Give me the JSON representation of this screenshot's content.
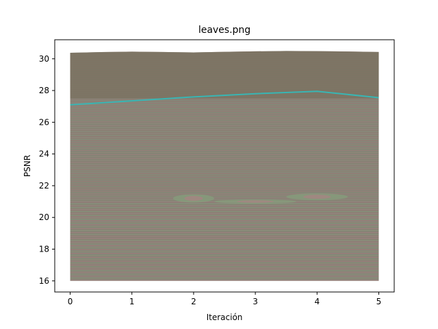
{
  "chart_data": {
    "type": "line",
    "title": "leaves.png",
    "xlabel": "Iteración",
    "ylabel": "PSNR",
    "xlim": [
      -0.25,
      5.25
    ],
    "ylim": [
      15.3,
      31.2
    ],
    "x_ticks": [
      0,
      1,
      2,
      3,
      4,
      5
    ],
    "y_ticks": [
      16,
      18,
      20,
      22,
      24,
      26,
      28,
      30
    ],
    "grid": false,
    "series": [
      {
        "x": [
          0,
          1,
          2,
          3,
          4,
          5
        ],
        "values": [
          27.1,
          27.35,
          27.6,
          27.8,
          27.95,
          27.55
        ],
        "color": "#38b6b4"
      }
    ],
    "colors": {
      "fill_band": "#867f72",
      "fill_band_top": "#7a705f",
      "moire_pink": "#b07f86",
      "moire_green": "#84a77e"
    }
  }
}
